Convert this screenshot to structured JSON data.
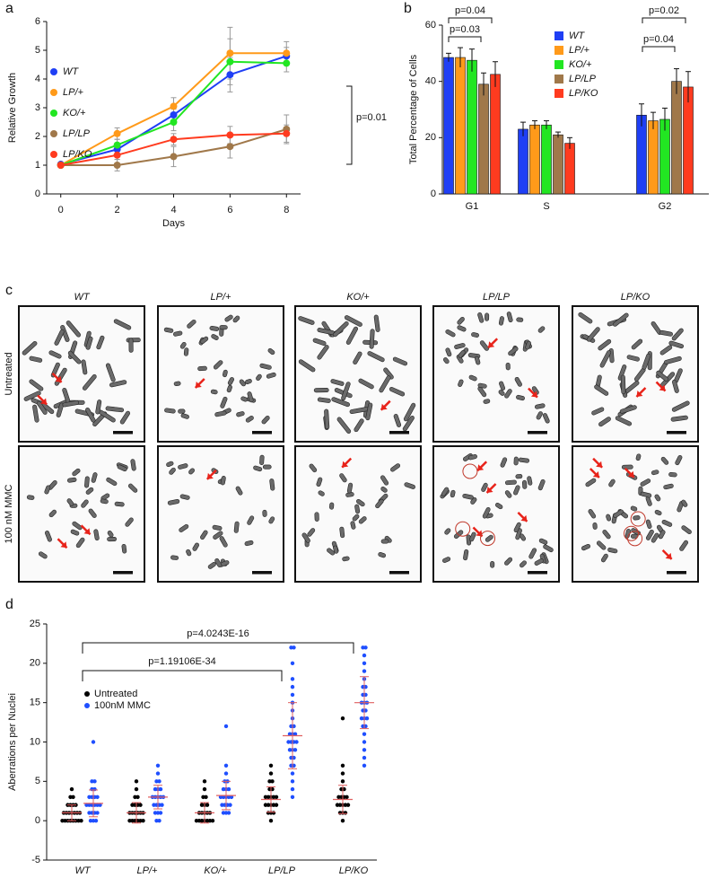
{
  "panel_labels": [
    "a",
    "b",
    "c",
    "d"
  ],
  "chart_data": [
    {
      "type": "line",
      "x_label": "Days",
      "y_label": "Relative Growth",
      "x": [
        0,
        2,
        4,
        6,
        8
      ],
      "xlim": [
        -0.5,
        8.5
      ],
      "xticks": [
        0,
        2,
        4,
        6,
        8
      ],
      "ylim": [
        0,
        6
      ],
      "yticks": [
        0,
        1,
        2,
        3,
        4,
        5,
        6
      ],
      "legend": "upper-left",
      "series": [
        {
          "name": "WT",
          "color": "#1f3ff5",
          "values": [
            1.03,
            1.55,
            2.75,
            4.15,
            4.8
          ],
          "errors": [
            0.05,
            0.15,
            0.2,
            0.6,
            0.3
          ]
        },
        {
          "name": "LP/+",
          "color": "#ff9a1a",
          "values": [
            1.0,
            2.1,
            3.05,
            4.9,
            4.9
          ],
          "errors": [
            0.05,
            0.2,
            0.3,
            0.9,
            0.4
          ]
        },
        {
          "name": "KO/+",
          "color": "#22e622",
          "values": [
            1.0,
            1.7,
            2.5,
            4.6,
            4.55
          ],
          "errors": [
            0.05,
            0.2,
            0.3,
            0.8,
            0.3
          ]
        },
        {
          "name": "LP/LP",
          "color": "#a0784a",
          "values": [
            1.0,
            1.0,
            1.3,
            1.65,
            2.25
          ],
          "errors": [
            0.05,
            0.2,
            0.35,
            0.4,
            0.5
          ]
        },
        {
          "name": "LP/KO",
          "color": "#ff3b1f",
          "values": [
            1.0,
            1.35,
            1.9,
            2.05,
            2.1
          ],
          "errors": [
            0.05,
            0.15,
            0.2,
            0.3,
            0.3
          ]
        }
      ],
      "annotations": [
        "p=0.01"
      ]
    },
    {
      "type": "bar",
      "y_label": "Total Percentage of Cells",
      "categories": [
        "G1",
        "S",
        "G2"
      ],
      "ylim": [
        0,
        60
      ],
      "yticks": [
        0,
        20,
        40,
        60
      ],
      "legend": "upper-center",
      "series": [
        {
          "name": "WT",
          "color": "#1f3ff5",
          "values": [
            48.5,
            23,
            28
          ],
          "errors": [
            1.5,
            2.5,
            4
          ]
        },
        {
          "name": "LP/+",
          "color": "#ff9a1a",
          "values": [
            48.5,
            24.5,
            26
          ],
          "errors": [
            3.5,
            1.5,
            3
          ]
        },
        {
          "name": "KO/+",
          "color": "#22e622",
          "values": [
            47.5,
            24.5,
            26.5
          ],
          "errors": [
            4,
            1.5,
            4
          ]
        },
        {
          "name": "LP/LP",
          "color": "#a0784a",
          "values": [
            39,
            21,
            40
          ],
          "errors": [
            4,
            1,
            4.5
          ]
        },
        {
          "name": "LP/KO",
          "color": "#ff3b1f",
          "values": [
            42.5,
            18,
            38
          ],
          "errors": [
            4.5,
            2,
            5.5
          ]
        }
      ],
      "annotations": [
        "p=0.04",
        "p=0.03",
        "p=0.02",
        "p=0.04"
      ]
    },
    {
      "type": "dot",
      "y_label": "Aberrations per Nuclei",
      "categories": [
        "WT",
        "LP/+",
        "KO/+",
        "LP/LP",
        "LP/KO"
      ],
      "ylim": [
        -5,
        25
      ],
      "yticks": [
        -5,
        0,
        5,
        10,
        15,
        20,
        25
      ],
      "legend": "upper-left",
      "series": [
        {
          "name": "Untreated",
          "color": "#000000",
          "values": [
            [
              0,
              0,
              0,
              0,
              0,
              0,
              0,
              0,
              1,
              1,
              1,
              1,
              1,
              1,
              1,
              2,
              2,
              2,
              2,
              3,
              3,
              4
            ],
            [
              0,
              0,
              0,
              0,
              0,
              0,
              1,
              1,
              1,
              1,
              1,
              1,
              2,
              2,
              2,
              2,
              3,
              3,
              4,
              5
            ],
            [
              0,
              0,
              0,
              0,
              0,
              0,
              0,
              1,
              1,
              1,
              1,
              1,
              2,
              2,
              2,
              3,
              3,
              4,
              5
            ],
            [
              0,
              1,
              1,
              1,
              2,
              2,
              2,
              2,
              2,
              3,
              3,
              3,
              3,
              3,
              4,
              4,
              5,
              5,
              6,
              7
            ],
            [
              0,
              1,
              1,
              1,
              2,
              2,
              2,
              2,
              2,
              3,
              3,
              3,
              3,
              4,
              4,
              5,
              6,
              7,
              13
            ]
          ],
          "means": [
            1,
            1,
            1,
            2.7,
            2.7
          ],
          "sds": [
            1,
            1.3,
            1.3,
            1.6,
            1.8
          ]
        },
        {
          "name": "100nM MMC",
          "color": "#1f4fff",
          "values": [
            [
              0,
              0,
              0,
              1,
              1,
              1,
              1,
              2,
              2,
              2,
              2,
              2,
              2,
              3,
              3,
              3,
              3,
              4,
              4,
              5,
              5,
              10
            ],
            [
              0,
              0,
              1,
              1,
              1,
              2,
              2,
              2,
              2,
              3,
              3,
              3,
              3,
              3,
              4,
              4,
              4,
              5,
              5,
              6,
              7
            ],
            [
              1,
              1,
              1,
              2,
              2,
              2,
              2,
              3,
              3,
              3,
              3,
              3,
              4,
              4,
              4,
              5,
              5,
              6,
              7,
              12
            ],
            [
              3,
              4,
              5,
              6,
              7,
              7,
              8,
              8,
              9,
              9,
              9,
              10,
              10,
              10,
              10,
              11,
              11,
              11,
              12,
              12,
              13,
              14,
              15,
              16,
              17,
              18,
              20,
              22,
              22
            ],
            [
              7,
              8,
              9,
              10,
              11,
              12,
              12,
              13,
              13,
              13,
              14,
              14,
              15,
              15,
              15,
              16,
              16,
              17,
              17,
              18,
              19,
              20,
              21,
              22,
              22
            ]
          ],
          "means": [
            2.2,
            3,
            3.2,
            10.8,
            15
          ],
          "sds": [
            1.7,
            1.5,
            1.8,
            4.2,
            3.3
          ]
        }
      ],
      "annotations": [
        "p=4.0243E-16",
        "p=1.19106E-34"
      ]
    }
  ],
  "micrographs": {
    "columns": [
      "WT",
      "LP/+",
      "KO/+",
      "LP/LP",
      "LP/KO"
    ],
    "rows": [
      "Untreated",
      "100 nM MMC"
    ]
  }
}
